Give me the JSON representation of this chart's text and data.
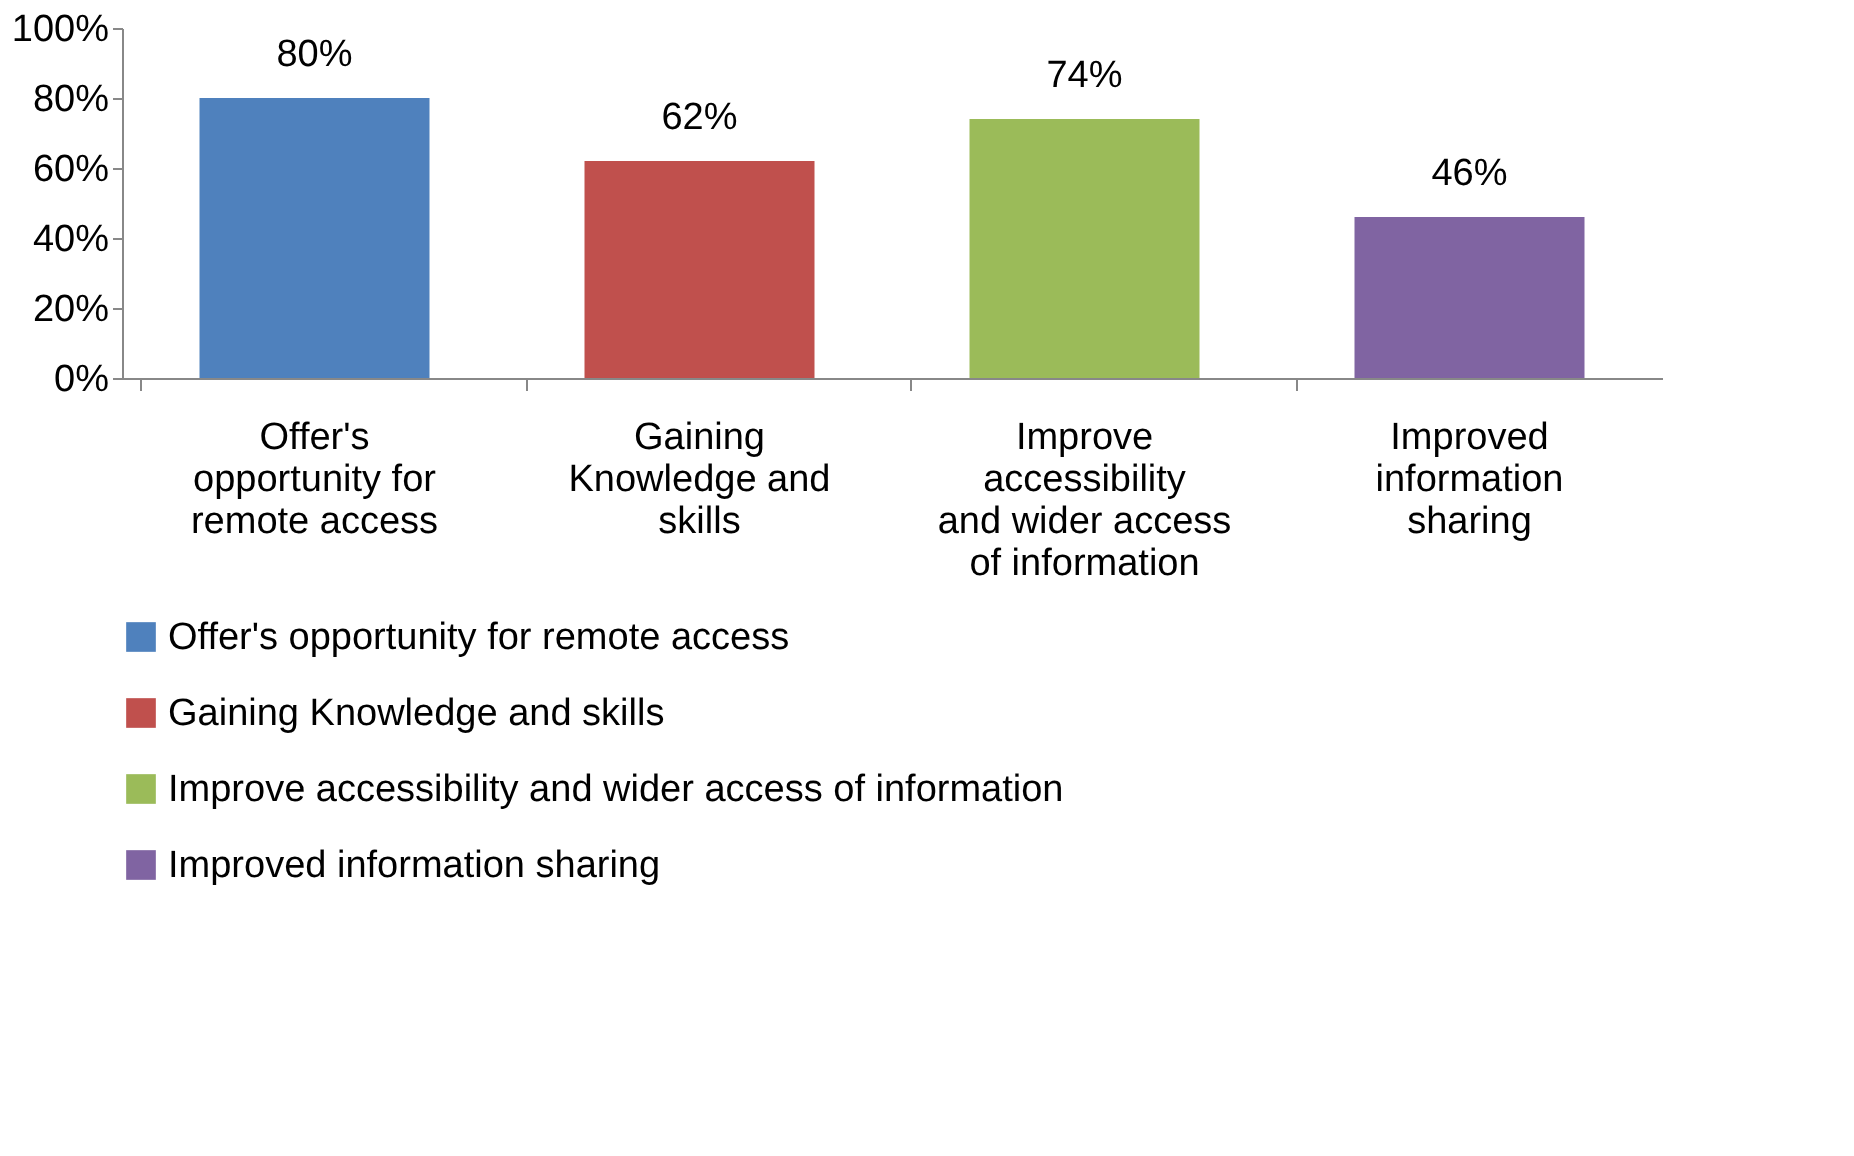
{
  "chart_data": {
    "type": "bar",
    "stacked": true,
    "categories": [
      "Offer's opportunity for remote access",
      "Gaining Knowledge and skills",
      "Improve accessibility and wider access of information",
      "Improved information sharing"
    ],
    "series": [
      {
        "name": "Offer's opportunity for remote access",
        "color": "#4f81bd",
        "values": [
          80,
          null,
          null,
          null
        ],
        "value_labels": [
          "80%",
          null,
          null,
          null
        ]
      },
      {
        "name": "Gaining Knowledge and skills",
        "color": "#c0504d",
        "values": [
          null,
          62,
          null,
          null
        ],
        "value_labels": [
          null,
          "62%",
          null,
          null
        ]
      },
      {
        "name": "Improve accessibility and wider access of information",
        "color": "#9bbb59",
        "values": [
          null,
          null,
          74,
          null
        ],
        "value_labels": [
          null,
          null,
          "74%",
          null
        ]
      },
      {
        "name": "Improved information sharing",
        "color": "#8064a2",
        "values": [
          null,
          null,
          null,
          46
        ],
        "value_labels": [
          null,
          null,
          null,
          "46%"
        ]
      }
    ],
    "ylim": [
      0,
      100
    ],
    "yticks": [
      {
        "value": 0,
        "label": "0%"
      },
      {
        "value": 20,
        "label": "20%"
      },
      {
        "value": 40,
        "label": "40%"
      },
      {
        "value": 60,
        "label": "60%"
      },
      {
        "value": 80,
        "label": "80%"
      },
      {
        "value": 100,
        "label": "100%"
      }
    ],
    "grid": false,
    "legend": "bottom"
  }
}
